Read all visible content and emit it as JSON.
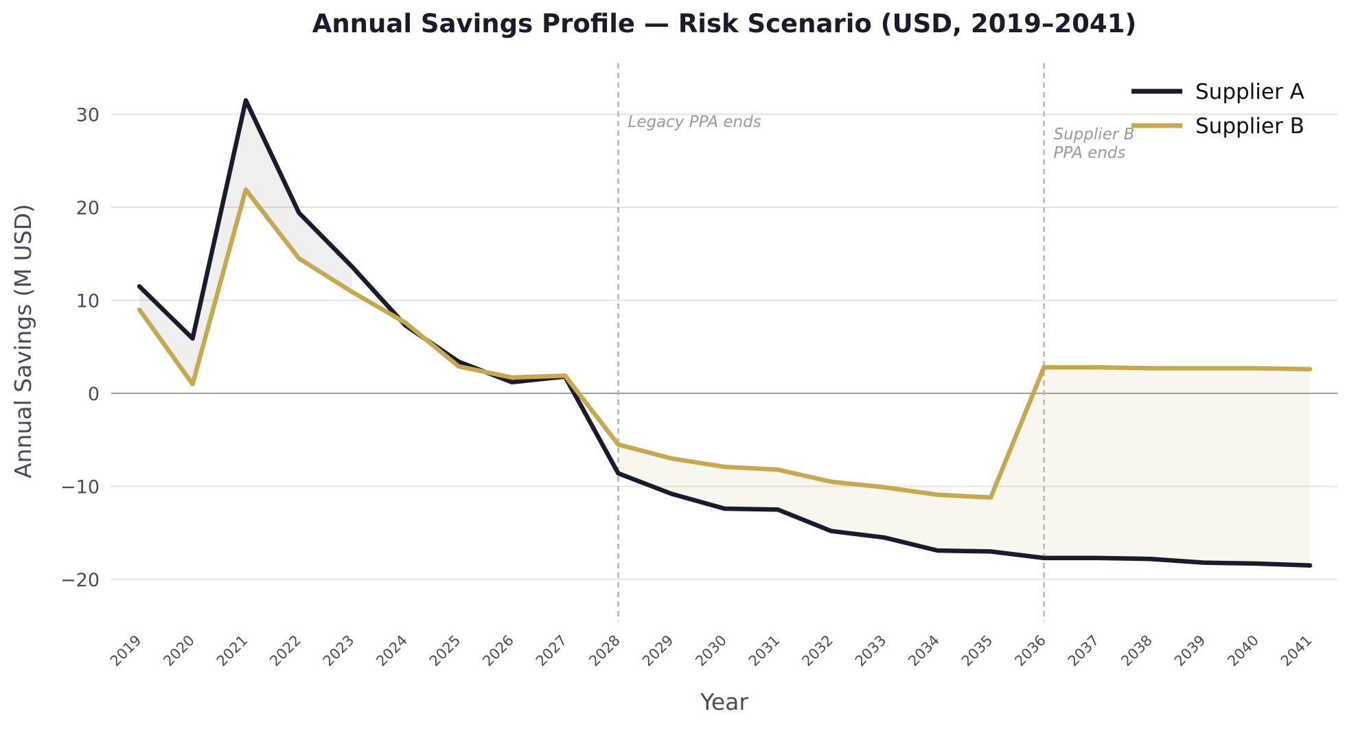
{
  "chart_data": {
    "type": "line",
    "title": "Annual Savings Profile — Risk Scenario (USD, 2019–2041)",
    "xlabel": "Year",
    "ylabel": "Annual Savings (M USD)",
    "ylim": [
      -24.5,
      35.5
    ],
    "yticks": [
      -20,
      -10,
      0,
      10,
      20,
      30
    ],
    "ytick_labels": [
      "−20",
      "−10",
      "0",
      "10",
      "20",
      "30"
    ],
    "categories": [
      "2019",
      "2020",
      "2021",
      "2022",
      "2023",
      "2024",
      "2025",
      "2026",
      "2027",
      "2028",
      "2029",
      "2030",
      "2031",
      "2032",
      "2033",
      "2034",
      "2035",
      "2036",
      "2037",
      "2038",
      "2039",
      "2040",
      "2041"
    ],
    "grid": "horizontal",
    "legend_position": "top-right",
    "series": [
      {
        "name": "Supplier A",
        "color": "#1b1b2e",
        "values": [
          11.5,
          5.9,
          31.5,
          19.4,
          13.6,
          7.3,
          3.4,
          1.2,
          1.8,
          -8.6,
          -10.8,
          -12.4,
          -12.5,
          -14.8,
          -15.5,
          -16.9,
          -17.0,
          -17.7,
          -17.7,
          -17.8,
          -18.2,
          -18.3,
          -18.5
        ]
      },
      {
        "name": "Supplier B",
        "color": "#c6a84f",
        "values": [
          9.0,
          1.0,
          21.9,
          14.5,
          10.9,
          7.6,
          2.9,
          1.7,
          1.9,
          -5.5,
          -7.0,
          -7.9,
          -8.2,
          -9.5,
          -10.1,
          -10.9,
          -11.2,
          2.8,
          2.8,
          2.7,
          2.7,
          2.7,
          2.6
        ]
      }
    ],
    "annotations": [
      {
        "x": "2028",
        "lines": [
          "Legacy PPA ends"
        ]
      },
      {
        "x": "2036",
        "lines": [
          "Supplier B",
          "PPA ends"
        ]
      }
    ]
  }
}
